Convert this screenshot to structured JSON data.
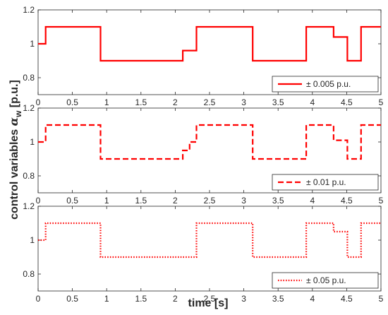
{
  "figure": {
    "xlabel": "time [s]",
    "ylabel_main": "control variables ",
    "ylabel_symbol": "α",
    "ylabel_sub": "w",
    "ylabel_unit": " [p.u.]"
  },
  "chart_data": [
    {
      "type": "line",
      "legend_position": "bottom-right",
      "xlim": [
        0,
        5
      ],
      "ylim": [
        0.7,
        1.2
      ],
      "xticks": [
        "0",
        "0.5",
        "1",
        "1.5",
        "2",
        "2.5",
        "3",
        "3.5",
        "4",
        "4.5",
        "5"
      ],
      "yticks": [
        "0.8",
        "1",
        "1.2"
      ],
      "grid": false,
      "series": [
        {
          "name": "± 0.005 p.u.",
          "style": "solid",
          "color": "#ff0000",
          "x": [
            0,
            0.11,
            0.11,
            0.91,
            0.91,
            2.11,
            2.11,
            2.31,
            2.31,
            3.13,
            3.13,
            3.91,
            3.91,
            4.31,
            4.31,
            4.51,
            4.51,
            4.71,
            4.71,
            5
          ],
          "y": [
            1.0,
            1.0,
            1.1,
            1.1,
            0.9,
            0.9,
            0.96,
            0.96,
            1.1,
            1.1,
            0.9,
            0.9,
            1.1,
            1.1,
            1.04,
            1.04,
            0.9,
            0.9,
            1.1,
            1.1
          ]
        }
      ]
    },
    {
      "type": "line",
      "legend_position": "bottom-right",
      "xlim": [
        0,
        5
      ],
      "ylim": [
        0.7,
        1.2
      ],
      "xticks": [
        "0",
        "0.5",
        "1",
        "1.5",
        "2",
        "2.5",
        "3",
        "3.5",
        "4",
        "4.5",
        "5"
      ],
      "yticks": [
        "0.8",
        "1",
        "1.2"
      ],
      "grid": false,
      "series": [
        {
          "name": "± 0.01 p.u.",
          "style": "dashed",
          "color": "#ff0000",
          "x": [
            0,
            0.11,
            0.11,
            0.91,
            0.91,
            2.11,
            2.11,
            2.21,
            2.21,
            2.31,
            2.31,
            3.13,
            3.13,
            3.91,
            3.91,
            4.31,
            4.31,
            4.51,
            4.51,
            4.71,
            4.71,
            5
          ],
          "y": [
            1.0,
            1.0,
            1.1,
            1.1,
            0.9,
            0.9,
            0.95,
            0.95,
            1.0,
            1.0,
            1.1,
            1.1,
            0.9,
            0.9,
            1.1,
            1.1,
            1.01,
            1.01,
            0.9,
            0.9,
            1.1,
            1.1
          ]
        }
      ]
    },
    {
      "type": "line",
      "legend_position": "bottom-right",
      "xlim": [
        0,
        5
      ],
      "ylim": [
        0.7,
        1.2
      ],
      "xticks": [
        "0",
        "0.5",
        "1",
        "1.5",
        "2",
        "2.5",
        "3",
        "3.5",
        "4",
        "4.5",
        "5"
      ],
      "yticks": [
        "0.8",
        "1",
        "1.2"
      ],
      "grid": false,
      "series": [
        {
          "name": "± 0.05 p.u.",
          "style": "dotted",
          "color": "#ff0000",
          "x": [
            0,
            0.11,
            0.11,
            0.91,
            0.91,
            2.31,
            2.31,
            3.13,
            3.13,
            3.91,
            3.91,
            4.31,
            4.31,
            4.51,
            4.51,
            4.71,
            4.71,
            5
          ],
          "y": [
            1.0,
            1.0,
            1.1,
            1.1,
            0.9,
            0.9,
            1.1,
            1.1,
            0.9,
            0.9,
            1.1,
            1.1,
            1.05,
            1.05,
            0.9,
            0.9,
            1.1,
            1.1
          ]
        }
      ]
    }
  ]
}
